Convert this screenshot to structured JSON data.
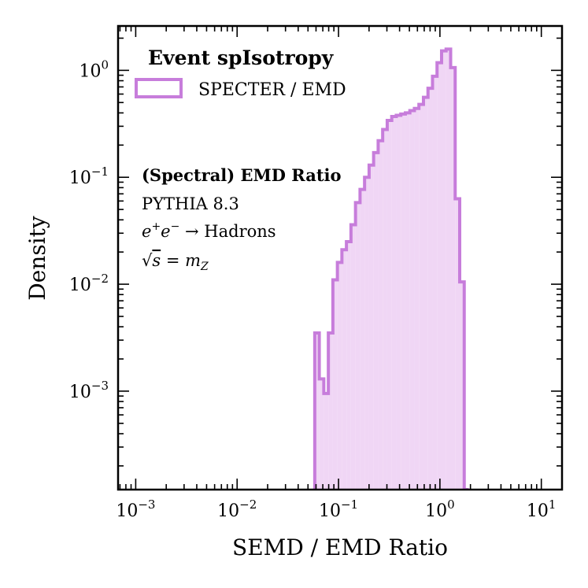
{
  "chart_data": {
    "type": "histogram",
    "xscale": "log",
    "yscale": "log",
    "xlim": [
      0.00067,
      16
    ],
    "ylim": [
      0.00012,
      2.6
    ],
    "xlabel": "SEMD / EMD Ratio",
    "ylabel": "Density",
    "xticks": [
      {
        "value": 0.001,
        "base": "10",
        "exp": "−3"
      },
      {
        "value": 0.01,
        "base": "10",
        "exp": "−2"
      },
      {
        "value": 0.1,
        "base": "10",
        "exp": "−1"
      },
      {
        "value": 1,
        "base": "10",
        "exp": "0"
      },
      {
        "value": 10,
        "base": "10",
        "exp": "1"
      }
    ],
    "yticks": [
      {
        "value": 0.001,
        "base": "10",
        "exp": "−3"
      },
      {
        "value": 0.01,
        "base": "10",
        "exp": "−2"
      },
      {
        "value": 0.1,
        "base": "10",
        "exp": "−1"
      },
      {
        "value": 1,
        "base": "10",
        "exp": "0"
      }
    ],
    "legend": {
      "title": "Event spIsotropy",
      "placement": "top-left",
      "entries": [
        {
          "label": "SPECTER / EMD",
          "color": "#c77ddb"
        }
      ]
    },
    "annotations": {
      "bold_line": "(Spectral) EMD Ratio",
      "generator": "PYTHIA 8.3",
      "process": {
        "e": "e",
        "plus": "+",
        "e2": "e",
        "minus": "−",
        "arrow": " → Hadrons"
      },
      "energy": {
        "sqrt": "√",
        "s": "s",
        "eq": " = ",
        "m": "m",
        "sub": "Z"
      }
    },
    "series": [
      {
        "name": "SPECTER / EMD",
        "color": "#c77ddb",
        "fill_color": "#f0d6f5",
        "bin_edges": [
          0.0583,
          0.0646,
          0.0716,
          0.0794,
          0.088,
          0.0975,
          0.108,
          0.1197,
          0.1327,
          0.1471,
          0.163,
          0.1807,
          0.2003,
          0.2219,
          0.246,
          0.2726,
          0.3022,
          0.3349,
          0.3712,
          0.4114,
          0.456,
          0.5054,
          0.5601,
          0.6208,
          0.6881,
          0.7626,
          0.8452,
          0.9368,
          1.0383,
          1.1508,
          1.2755,
          1.4137,
          1.5669,
          1.7367,
          1.925
        ],
        "values": [
          0.0035,
          0.0013,
          0.00095,
          0.0035,
          0.011,
          0.016,
          0.021,
          0.025,
          0.036,
          0.058,
          0.077,
          0.1,
          0.13,
          0.17,
          0.22,
          0.28,
          0.34,
          0.37,
          0.38,
          0.39,
          0.4,
          0.42,
          0.44,
          0.48,
          0.56,
          0.68,
          0.88,
          1.18,
          1.52,
          1.58,
          1.06,
          0.063,
          0.0105,
          0.0001
        ]
      }
    ]
  }
}
